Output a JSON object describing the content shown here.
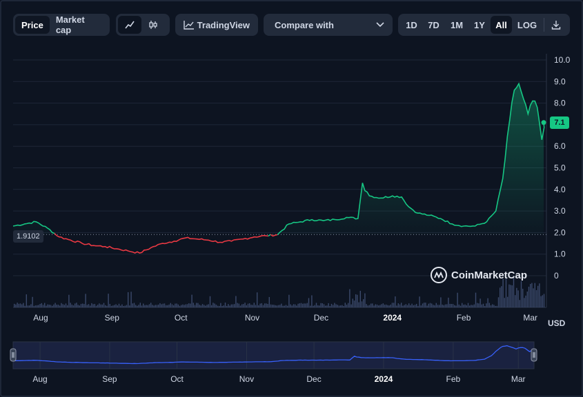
{
  "toolbar": {
    "price_label": "Price",
    "marketcap_label": "Market cap",
    "tradingview_label": "TradingView",
    "compare_label": "Compare with",
    "ranges": [
      "1D",
      "7D",
      "1M",
      "1Y",
      "All"
    ],
    "active_range": "All",
    "log_label": "LOG",
    "icons": [
      "line-chart-icon",
      "candlestick-icon",
      "tradingview-icon",
      "chevron-down-icon",
      "download-icon"
    ]
  },
  "watermark": "CoinMarketCap",
  "currency_label": "USD",
  "reference_price": "1.9102",
  "current_price_label": "7.1",
  "colors": {
    "up": "#16c784",
    "down": "#ea3943",
    "volume": "#3b4a6b",
    "navigator": "#3861fb",
    "background": "#0d1421",
    "panel": "#222b3b"
  },
  "chart_data": {
    "type": "line",
    "ylabel": "USD",
    "ylim": [
      -1.5,
      10
    ],
    "yticks": [
      "10.0",
      "9.0",
      "8.0",
      "7.0",
      "6.0",
      "5.0",
      "4.0",
      "3.0",
      "2.0",
      "1.0",
      "0"
    ],
    "xticks": [
      "Aug",
      "Sep",
      "Oct",
      "Nov",
      "Dec",
      "2024",
      "Feb",
      "Mar"
    ],
    "xticks_bold": [
      "2024"
    ],
    "baseline": 1.9102,
    "current": 7.1,
    "series": [
      {
        "x": [
          "2023-07-20",
          "2023-07-25",
          "2023-07-30",
          "2023-08-04",
          "2023-08-09",
          "2023-08-14",
          "2023-08-19",
          "2023-08-24",
          "2023-08-29",
          "2023-09-03",
          "2023-09-08",
          "2023-09-13",
          "2023-09-18",
          "2023-09-23",
          "2023-09-28",
          "2023-10-03",
          "2023-10-08",
          "2023-10-13",
          "2023-10-18",
          "2023-10-23",
          "2023-10-28",
          "2023-11-02",
          "2023-11-07",
          "2023-11-12",
          "2023-11-17",
          "2023-11-22",
          "2023-11-27",
          "2023-12-02",
          "2023-12-07",
          "2023-12-12",
          "2023-12-17",
          "2023-12-19",
          "2023-12-22",
          "2023-12-27",
          "2024-01-01",
          "2024-01-05",
          "2024-01-08",
          "2024-01-12",
          "2024-01-17",
          "2024-01-22",
          "2024-01-27",
          "2024-02-01",
          "2024-02-06",
          "2024-02-11",
          "2024-02-15",
          "2024-02-18",
          "2024-02-21",
          "2024-02-23",
          "2024-02-25",
          "2024-02-27",
          "2024-02-29",
          "2024-03-02",
          "2024-03-04",
          "2024-03-06",
          "2024-03-08"
        ],
        "y": [
          2.3,
          2.4,
          2.5,
          2.2,
          1.8,
          1.65,
          1.5,
          1.4,
          1.35,
          1.25,
          1.15,
          1.05,
          1.3,
          1.5,
          1.6,
          1.75,
          1.7,
          1.65,
          1.55,
          1.6,
          1.7,
          1.8,
          1.85,
          1.9,
          2.4,
          2.5,
          2.6,
          2.55,
          2.6,
          2.7,
          2.65,
          4.3,
          3.7,
          3.6,
          3.7,
          3.65,
          3.2,
          2.9,
          2.8,
          2.65,
          2.4,
          2.3,
          2.3,
          2.5,
          3.0,
          4.5,
          7.2,
          8.6,
          8.9,
          8.2,
          7.5,
          8.1,
          7.8,
          6.3,
          7.1
        ]
      }
    ],
    "volume_note": "volume bars shown below price line",
    "navigator": {
      "xticks": [
        "Aug",
        "Sep",
        "Oct",
        "Nov",
        "Dec",
        "2024",
        "Feb",
        "Mar"
      ]
    }
  }
}
